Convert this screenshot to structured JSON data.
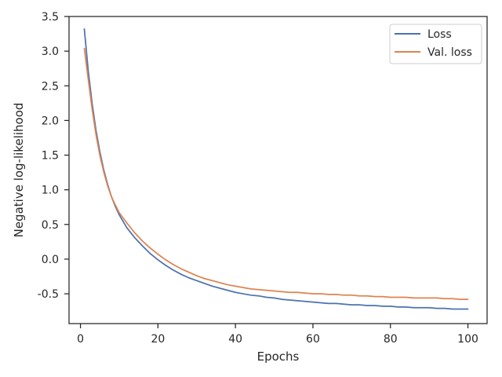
{
  "chart_data": {
    "type": "line",
    "title": "",
    "xlabel": "Epochs",
    "ylabel": "Negative log-likelihood",
    "xlim": [
      -2.95,
      104.95
    ],
    "ylim": [
      -0.93,
      3.5
    ],
    "xticks": [
      0,
      20,
      40,
      60,
      80,
      100
    ],
    "yticks": [
      -0.5,
      0.0,
      0.5,
      1.0,
      1.5,
      2.0,
      2.5,
      3.0,
      3.5
    ],
    "grid": false,
    "legend_position": "top-right",
    "series": [
      {
        "name": "Loss",
        "color": "#4c72b0",
        "x": [
          1,
          2,
          3,
          4,
          5,
          6,
          7,
          8,
          9,
          10,
          12,
          14,
          16,
          18,
          20,
          22,
          24,
          26,
          28,
          30,
          32,
          34,
          36,
          38,
          40,
          42,
          44,
          46,
          48,
          50,
          52,
          54,
          56,
          58,
          60,
          62,
          64,
          66,
          68,
          70,
          72,
          74,
          76,
          78,
          80,
          82,
          84,
          86,
          88,
          90,
          92,
          94,
          96,
          98,
          100
        ],
        "values": [
          3.32,
          2.72,
          2.25,
          1.86,
          1.55,
          1.29,
          1.08,
          0.9,
          0.76,
          0.64,
          0.45,
          0.31,
          0.19,
          0.08,
          -0.01,
          -0.09,
          -0.16,
          -0.22,
          -0.27,
          -0.31,
          -0.35,
          -0.39,
          -0.42,
          -0.45,
          -0.48,
          -0.5,
          -0.52,
          -0.53,
          -0.55,
          -0.56,
          -0.58,
          -0.59,
          -0.6,
          -0.61,
          -0.62,
          -0.63,
          -0.64,
          -0.64,
          -0.65,
          -0.66,
          -0.66,
          -0.67,
          -0.67,
          -0.68,
          -0.68,
          -0.69,
          -0.69,
          -0.7,
          -0.7,
          -0.7,
          -0.71,
          -0.71,
          -0.72,
          -0.72,
          -0.72
        ]
      },
      {
        "name": "Val. loss",
        "color": "#dd8452",
        "x": [
          1,
          2,
          3,
          4,
          5,
          6,
          7,
          8,
          9,
          10,
          12,
          14,
          16,
          18,
          20,
          22,
          24,
          26,
          28,
          30,
          32,
          34,
          36,
          38,
          40,
          42,
          44,
          46,
          48,
          50,
          52,
          54,
          56,
          58,
          60,
          62,
          64,
          66,
          68,
          70,
          72,
          74,
          76,
          78,
          80,
          82,
          84,
          86,
          88,
          90,
          92,
          94,
          96,
          98,
          100
        ],
        "values": [
          3.04,
          2.6,
          2.17,
          1.8,
          1.5,
          1.26,
          1.06,
          0.9,
          0.78,
          0.67,
          0.52,
          0.38,
          0.26,
          0.16,
          0.07,
          -0.01,
          -0.08,
          -0.14,
          -0.19,
          -0.24,
          -0.28,
          -0.31,
          -0.34,
          -0.37,
          -0.39,
          -0.41,
          -0.43,
          -0.44,
          -0.45,
          -0.46,
          -0.47,
          -0.48,
          -0.48,
          -0.49,
          -0.5,
          -0.5,
          -0.51,
          -0.51,
          -0.52,
          -0.52,
          -0.53,
          -0.53,
          -0.54,
          -0.54,
          -0.55,
          -0.55,
          -0.55,
          -0.56,
          -0.56,
          -0.56,
          -0.56,
          -0.57,
          -0.57,
          -0.58,
          -0.58
        ]
      }
    ]
  }
}
